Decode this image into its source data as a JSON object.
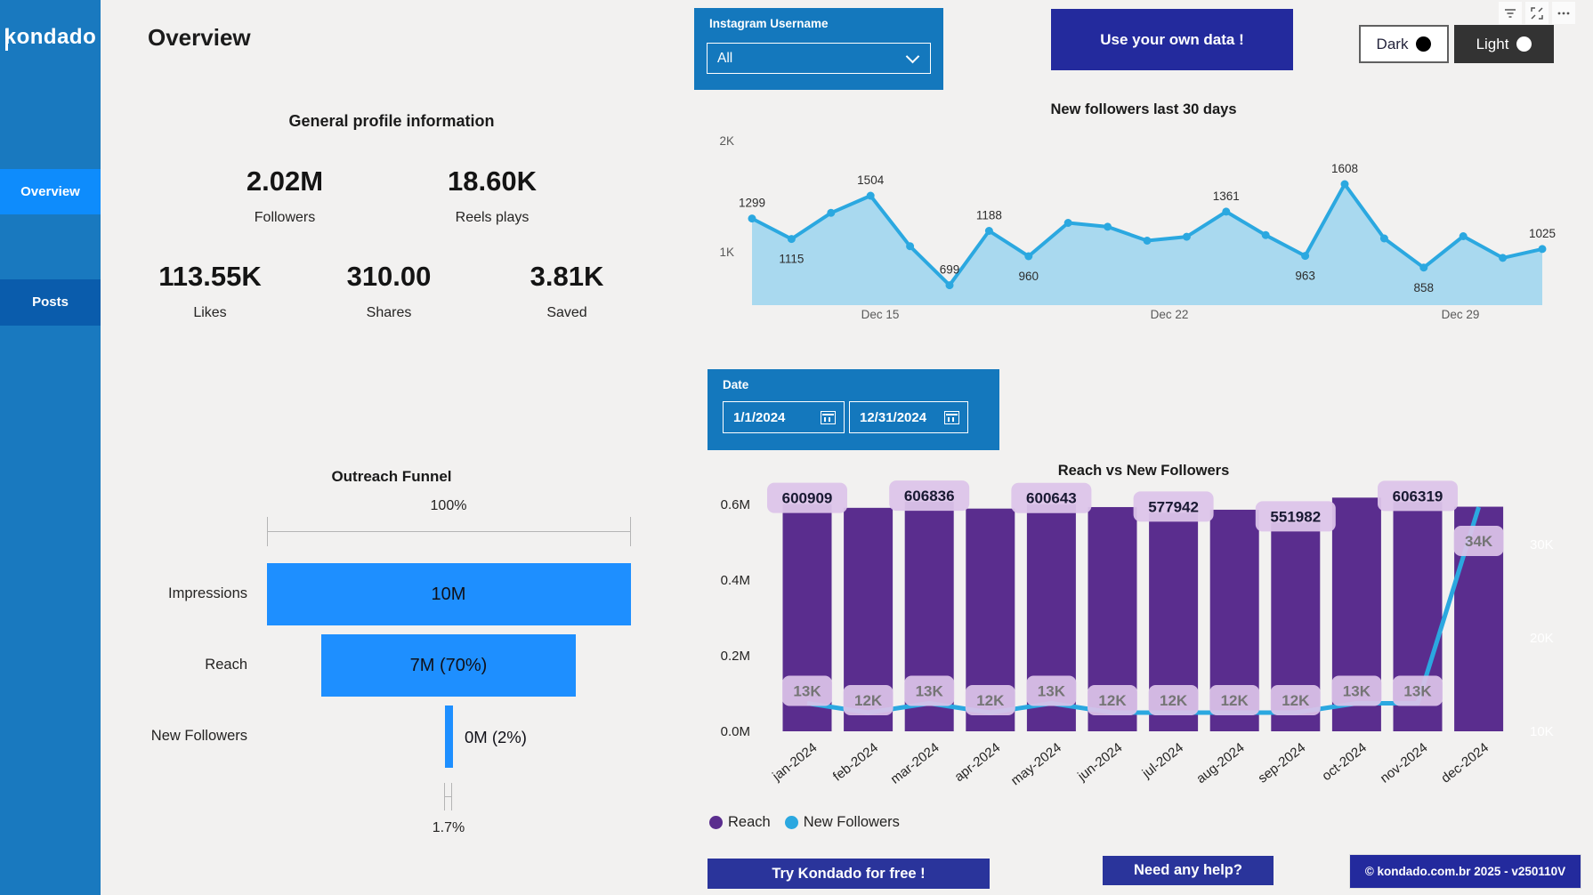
{
  "sidebar": {
    "logo": "kondado",
    "items": [
      {
        "label": "Overview",
        "active": true
      },
      {
        "label": "Posts",
        "active": false
      }
    ]
  },
  "header": {
    "title": "Overview",
    "icons": [
      "filter-icon",
      "focus-mode-icon",
      "more-options-icon"
    ],
    "theme_toggle": {
      "dark": "Dark",
      "light": "Light"
    }
  },
  "profile_stats": {
    "title": "General profile information",
    "stats": [
      {
        "value": "2.02M",
        "label": "Followers"
      },
      {
        "value": "18.60K",
        "label": "Reels plays"
      },
      {
        "value": "113.55K",
        "label": "Likes"
      },
      {
        "value": "310.00",
        "label": "Shares"
      },
      {
        "value": "3.81K",
        "label": "Saved"
      }
    ]
  },
  "filters": {
    "instagram_username": {
      "label": "Instagram Username",
      "value": "All"
    },
    "date": {
      "label": "Date",
      "start": "1/1/2024",
      "end": "12/31/2024"
    }
  },
  "buttons": {
    "use_own_data": "Use your own data !",
    "try": "Try Kondado for free !",
    "help": "Need any help?",
    "copyright": "© kondado.com.br 2025 - v250110V"
  },
  "colors": {
    "sidebar": "#1979BF",
    "sidebar_active": "#0E8CFC",
    "sidebar_posts": "#0A5CAC",
    "filter_panel": "#1478BD",
    "navy_button": "#232A9D",
    "funnel_blue": "#1E8FFF",
    "line_blue": "#2BA8E0",
    "area_fill": "#A9D9EF",
    "bar_purple": "#5A2D8E",
    "callout_bg": "#DCC4E9"
  },
  "chart_data": [
    {
      "id": "new_followers_30d",
      "type": "area",
      "title": "New followers last 30 days",
      "y_ticks": [
        "1K",
        "2K"
      ],
      "x_ticks": [
        "Dec 15",
        "Dec 22",
        "Dec 29"
      ],
      "line_color": "#2BA8E0",
      "fill_color": "#A9D9EF",
      "points": [
        {
          "v": 1299,
          "label": "1299",
          "label_pos": "above"
        },
        {
          "v": 1115,
          "label": "1115",
          "label_pos": "below"
        },
        {
          "v": 1350
        },
        {
          "v": 1504,
          "label": "1504",
          "label_pos": "above"
        },
        {
          "v": 1050
        },
        {
          "v": 699,
          "label": "699",
          "label_pos": "above"
        },
        {
          "v": 1188,
          "label": "1188",
          "label_pos": "above"
        },
        {
          "v": 960,
          "label": "960",
          "label_pos": "below"
        },
        {
          "v": 1260
        },
        {
          "v": 1225
        },
        {
          "v": 1100
        },
        {
          "v": 1135
        },
        {
          "v": 1361,
          "label": "1361",
          "label_pos": "above"
        },
        {
          "v": 1150
        },
        {
          "v": 963,
          "label": "963",
          "label_pos": "below"
        },
        {
          "v": 1608,
          "label": "1608",
          "label_pos": "above"
        },
        {
          "v": 1120
        },
        {
          "v": 858,
          "label": "858",
          "label_pos": "below"
        },
        {
          "v": 1140
        },
        {
          "v": 945
        },
        {
          "v": 1025,
          "label": "1025",
          "label_pos": "above"
        }
      ]
    },
    {
      "id": "outreach_funnel",
      "type": "funnel",
      "title": "Outreach Funnel",
      "top_label": "100%",
      "bottom_label": "1.7%",
      "bar_color": "#1E8FFF",
      "stages": [
        {
          "label": "Impressions",
          "value_label": "10M",
          "width_pct": 100
        },
        {
          "label": "Reach",
          "value_label": "7M (70%)",
          "width_pct": 70
        },
        {
          "label": "New Followers",
          "value_label": "0M (2%)",
          "width_pct": 2
        }
      ]
    },
    {
      "id": "reach_vs_new_followers",
      "type": "combo",
      "title": "Reach vs New Followers",
      "categories": [
        "jan-2024",
        "feb-2024",
        "mar-2024",
        "apr-2024",
        "may-2024",
        "jun-2024",
        "jul-2024",
        "aug-2024",
        "sep-2024",
        "oct-2024",
        "nov-2024",
        "dec-2024"
      ],
      "left_axis": {
        "ticks": [
          "0.0M",
          "0.2M",
          "0.4M",
          "0.6M"
        ]
      },
      "right_axis": {
        "ticks": [
          "10K",
          "20K",
          "30K"
        ]
      },
      "legend": [
        "Reach",
        "New Followers"
      ],
      "series": [
        {
          "name": "Reach",
          "type": "bar",
          "color": "#5A2D8E",
          "values": [
            600909,
            591000,
            606836,
            589000,
            600643,
            593000,
            577942,
            586000,
            551982,
            618000,
            606319,
            594000
          ],
          "labels": [
            "600909",
            null,
            "606836",
            null,
            "600643",
            null,
            "577942",
            null,
            "551982",
            null,
            "606319",
            null
          ]
        },
        {
          "name": "New Followers",
          "type": "line",
          "color": "#2BA8E0",
          "values": [
            13000,
            12000,
            13000,
            12000,
            13000,
            12000,
            12000,
            12000,
            12000,
            13000,
            13000,
            34000
          ],
          "labels": [
            "13K",
            "12K",
            "13K",
            "12K",
            "13K",
            "12K",
            "12K",
            "12K",
            "12K",
            "13K",
            "13K",
            "34K"
          ]
        }
      ]
    }
  ]
}
